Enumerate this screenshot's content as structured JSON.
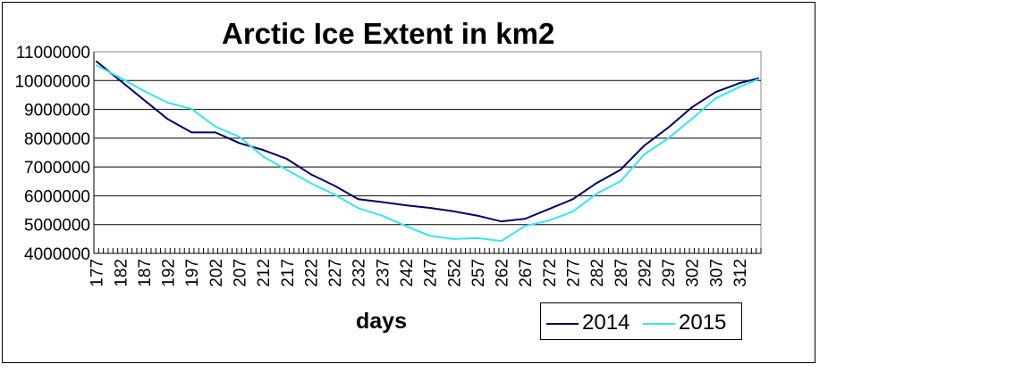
{
  "chart_data": {
    "type": "line",
    "title": "Arctic Ice Extent in km2",
    "xlabel": "days",
    "ylabel": "",
    "ylim": [
      4000000,
      11000000
    ],
    "yticks": [
      "4000000",
      "5000000",
      "6000000",
      "7000000",
      "8000000",
      "9000000",
      "10000000",
      "11000000"
    ],
    "xlim": [
      177,
      316
    ],
    "xticks": [
      "177",
      "182",
      "187",
      "192",
      "197",
      "202",
      "207",
      "212",
      "217",
      "222",
      "227",
      "232",
      "237",
      "242",
      "247",
      "252",
      "257",
      "262",
      "267",
      "272",
      "277",
      "282",
      "287",
      "292",
      "297",
      "302",
      "307",
      "312"
    ],
    "grid": "horizontal",
    "legend_position": "bottom-right",
    "x": [
      177,
      182,
      187,
      192,
      197,
      202,
      207,
      212,
      217,
      222,
      227,
      232,
      237,
      242,
      247,
      252,
      257,
      262,
      267,
      272,
      277,
      282,
      287,
      292,
      297,
      302,
      307,
      312,
      316
    ],
    "series": [
      {
        "name": "2014",
        "color": "#000066",
        "values": [
          10670000,
          10000000,
          9330000,
          8660000,
          8200000,
          8200000,
          7830000,
          7590000,
          7280000,
          6750000,
          6350000,
          5880000,
          5780000,
          5670000,
          5580000,
          5460000,
          5310000,
          5110000,
          5200000,
          5540000,
          5880000,
          6440000,
          6900000,
          7740000,
          8360000,
          9070000,
          9600000,
          9910000,
          10080000
        ]
      },
      {
        "name": "2015",
        "color": "#33E6F0",
        "values": [
          10530000,
          10100000,
          9640000,
          9230000,
          9020000,
          8400000,
          8050000,
          7370000,
          6900000,
          6440000,
          6040000,
          5570000,
          5310000,
          4950000,
          4610000,
          4500000,
          4530000,
          4430000,
          4950000,
          5140000,
          5450000,
          6070000,
          6500000,
          7430000,
          7990000,
          8670000,
          9380000,
          9780000,
          10050000
        ]
      }
    ]
  }
}
